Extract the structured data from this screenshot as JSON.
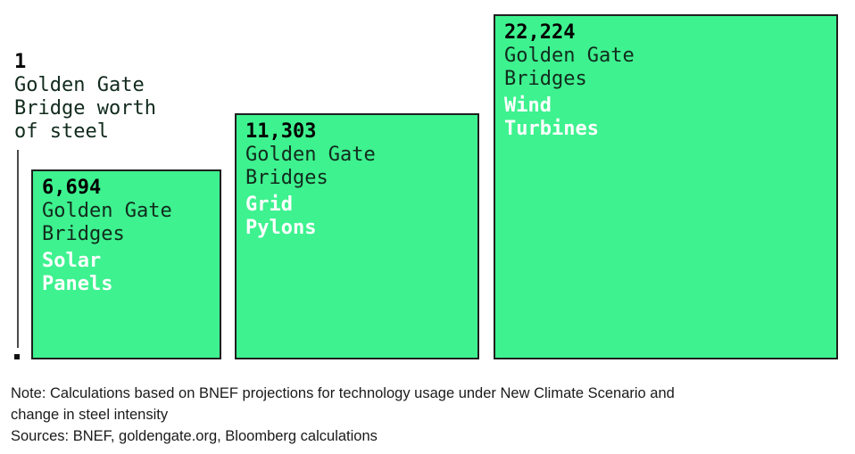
{
  "chart_data": {
    "type": "bar",
    "variant": "area-proportional-squares",
    "title": "",
    "unit": "Golden Gate Bridges worth of steel",
    "legend": "none",
    "grid": false,
    "reference": {
      "value": 1,
      "label_lines": {
        "value": "1",
        "line1": "Golden Gate",
        "line2": "Bridge worth",
        "line3": "of steel"
      }
    },
    "items": [
      {
        "category": "Solar Panels",
        "value": 6694,
        "value_label": "6,694",
        "unit_line1": "Golden Gate",
        "unit_line2": "Bridges",
        "category_line1": "Solar",
        "category_line2": "Panels"
      },
      {
        "category": "Grid Pylons",
        "value": 11303,
        "value_label": "11,303",
        "unit_line1": "Golden Gate",
        "unit_line2": "Bridges",
        "category_line1": "Grid",
        "category_line2": "Pylons"
      },
      {
        "category": "Wind Turbines",
        "value": 22224,
        "value_label": "22,224",
        "unit_line1": "Golden Gate",
        "unit_line2": "Bridges",
        "category_line1": "Wind",
        "category_line2": "Turbines"
      }
    ],
    "footnote": {
      "note_line1": "Note: Calculations based on BNEF projections for technology usage under New Climate Scenario and",
      "note_line2": "change in steel intensity",
      "sources": "Sources: BNEF, goldengate.org, Bloomberg calculations"
    },
    "colors": {
      "square_fill": "#3ef28f",
      "square_border": "#1f1f1f",
      "value_text": "#000000",
      "unit_text": "#112b1d",
      "category_text": "#ffffff",
      "pointer_line": "#4a4a4a"
    }
  }
}
